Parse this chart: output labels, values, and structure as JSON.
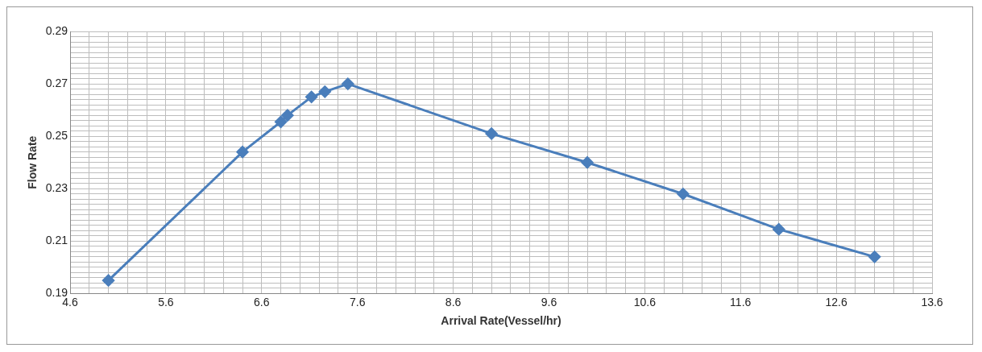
{
  "chart_data": {
    "type": "line",
    "xlabel": "Arrival Rate(Vessel/hr)",
    "ylabel": "Flow Rate",
    "x": [
      5.0,
      6.4,
      6.8,
      6.87,
      7.12,
      7.26,
      7.5,
      9.0,
      10.0,
      11.0,
      12.0,
      13.0
    ],
    "series": [
      {
        "color": "#4a7ebb",
        "values": [
          0.195,
          0.244,
          0.2555,
          0.258,
          0.265,
          0.267,
          0.27,
          0.251,
          0.24,
          0.228,
          0.2145,
          0.204
        ]
      }
    ],
    "marker": "diamond",
    "line_style": "solid",
    "grid": true,
    "legend": false,
    "xlim": [
      4.6,
      13.6
    ],
    "xticks": [
      4.6,
      {
        "value": 4.8,
        "label": null
      },
      {
        "value": 5.0,
        "label": null
      },
      {
        "value": 5.2,
        "label": null
      },
      {
        "value": 5.4,
        "label": null
      },
      5.6,
      {
        "value": 5.8,
        "label": null
      },
      {
        "value": 6.0,
        "label": null
      },
      {
        "value": 6.2,
        "label": null
      },
      {
        "value": 6.4,
        "label": null
      },
      6.6,
      {
        "value": 6.8,
        "label": null
      },
      {
        "value": 7.0,
        "label": null
      },
      {
        "value": 7.2,
        "label": null
      },
      {
        "value": 7.4,
        "label": null
      },
      7.6,
      {
        "value": 7.8,
        "label": null
      },
      {
        "value": 8.0,
        "label": null
      },
      {
        "value": 8.2,
        "label": null
      },
      {
        "value": 8.4,
        "label": null
      },
      8.6,
      {
        "value": 8.8,
        "label": null
      },
      {
        "value": 9.0,
        "label": null
      },
      {
        "value": 9.2,
        "label": null
      },
      {
        "value": 9.4,
        "label": null
      },
      9.6,
      {
        "value": 9.8,
        "label": null
      },
      {
        "value": 10.0,
        "label": null
      },
      {
        "value": 10.2,
        "label": null
      },
      {
        "value": 10.4,
        "label": null
      },
      10.6,
      {
        "value": 10.8,
        "label": null
      },
      {
        "value": 11.0,
        "label": null
      },
      {
        "value": 11.2,
        "label": null
      },
      {
        "value": 11.4,
        "label": null
      },
      11.6,
      {
        "value": 11.8,
        "label": null
      },
      {
        "value": 12.0,
        "label": null
      },
      {
        "value": 12.2,
        "label": null
      },
      {
        "value": 12.4,
        "label": null
      },
      12.6,
      {
        "value": 12.8,
        "label": null
      },
      {
        "value": 13.0,
        "label": null
      },
      {
        "value": 13.2,
        "label": null
      },
      {
        "value": 13.4,
        "label": null
      },
      13.6
    ],
    "ylim": [
      0.19,
      0.29
    ],
    "yticks": [
      0.19,
      {
        "value": 0.192,
        "label": null
      },
      {
        "value": 0.194,
        "label": null
      },
      {
        "value": 0.196,
        "label": null
      },
      {
        "value": 0.198,
        "label": null
      },
      {
        "value": 0.2,
        "label": null
      },
      {
        "value": 0.202,
        "label": null
      },
      {
        "value": 0.204,
        "label": null
      },
      {
        "value": 0.206,
        "label": null
      },
      {
        "value": 0.208,
        "label": null
      },
      0.21,
      {
        "value": 0.212,
        "label": null
      },
      {
        "value": 0.214,
        "label": null
      },
      {
        "value": 0.216,
        "label": null
      },
      {
        "value": 0.218,
        "label": null
      },
      {
        "value": 0.22,
        "label": null
      },
      {
        "value": 0.222,
        "label": null
      },
      {
        "value": 0.224,
        "label": null
      },
      {
        "value": 0.226,
        "label": null
      },
      {
        "value": 0.228,
        "label": null
      },
      0.23,
      {
        "value": 0.232,
        "label": null
      },
      {
        "value": 0.234,
        "label": null
      },
      {
        "value": 0.236,
        "label": null
      },
      {
        "value": 0.238,
        "label": null
      },
      {
        "value": 0.24,
        "label": null
      },
      {
        "value": 0.242,
        "label": null
      },
      {
        "value": 0.244,
        "label": null
      },
      {
        "value": 0.246,
        "label": null
      },
      {
        "value": 0.248,
        "label": null
      },
      0.25,
      {
        "value": 0.252,
        "label": null
      },
      {
        "value": 0.254,
        "label": null
      },
      {
        "value": 0.256,
        "label": null
      },
      {
        "value": 0.258,
        "label": null
      },
      {
        "value": 0.26,
        "label": null
      },
      {
        "value": 0.262,
        "label": null
      },
      {
        "value": 0.264,
        "label": null
      },
      {
        "value": 0.266,
        "label": null
      },
      {
        "value": 0.268,
        "label": null
      },
      0.27,
      {
        "value": 0.272,
        "label": null
      },
      {
        "value": 0.274,
        "label": null
      },
      {
        "value": 0.276,
        "label": null
      },
      {
        "value": 0.278,
        "label": null
      },
      {
        "value": 0.28,
        "label": null
      },
      {
        "value": 0.282,
        "label": null
      },
      {
        "value": 0.284,
        "label": null
      },
      {
        "value": 0.286,
        "label": null
      },
      {
        "value": 0.288,
        "label": null
      },
      0.29
    ]
  }
}
